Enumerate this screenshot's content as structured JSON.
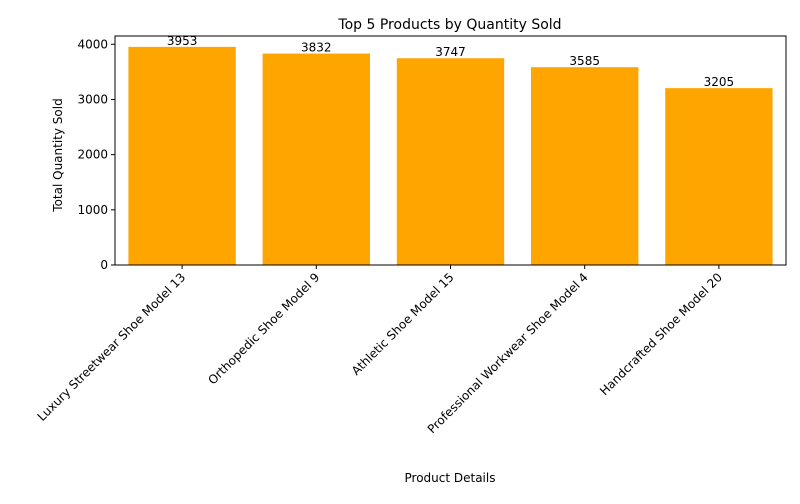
{
  "chart_data": {
    "type": "bar",
    "title": "Top 5 Products by Quantity Sold",
    "xlabel": "Product Details",
    "ylabel": "Total Quantity Sold",
    "categories": [
      "Luxury Streetwear Shoe Model 13",
      "Orthopedic Shoe Model 9",
      "Athletic Shoe Model 15",
      "Professional Workwear Shoe Model 4",
      "Handcrafted Shoe Model 20"
    ],
    "values": [
      3953,
      3832,
      3747,
      3585,
      3205
    ],
    "data_labels": [
      "3953",
      "3832",
      "3747",
      "3585",
      "3205"
    ],
    "ylim": [
      0,
      4150
    ],
    "yticks": [
      0,
      1000,
      2000,
      3000,
      4000
    ],
    "ytick_labels": [
      "0",
      "1000",
      "2000",
      "3000",
      "4000"
    ],
    "bar_color": "#FFA500",
    "grid": false,
    "legend": "none"
  }
}
